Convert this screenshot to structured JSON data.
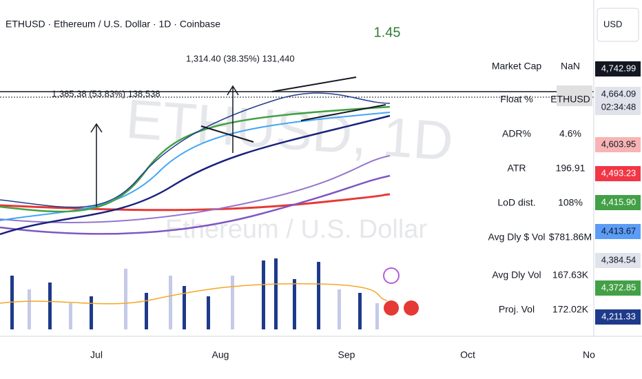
{
  "header": {
    "symbol_title": "ETHUSD · Ethereum / U.S. Dollar · 1D · Coinbase",
    "indicator_value": "1.45"
  },
  "annotations": [
    "1,314.40 (38.35%) 131,440",
    "1,385.38 (53.83%) 138,538"
  ],
  "watermark": {
    "symbol": "ETHUSD, 1D",
    "name": "Ethereum / U.S. Dollar"
  },
  "stats_table": {
    "rows": [
      [
        "Market Cap",
        "NaN"
      ],
      [
        "Float %",
        "ETHUSD"
      ],
      [
        "ADR%",
        "4.6%"
      ],
      [
        "ATR",
        "196.91"
      ],
      [
        "LoD dist.",
        "108%"
      ],
      [
        "Avg Dly $ Vol",
        "$781.86M"
      ],
      [
        "Avg Dly Vol",
        "167.63K"
      ],
      [
        "Proj. Vol",
        "172.02K"
      ]
    ]
  },
  "price_axis": {
    "currency": "USD",
    "labels": [
      "4,742.99",
      "4,664.09",
      "02:34:48",
      "4,603.95",
      "4,493.23",
      "4,415.90",
      "4,413.67",
      "4,384.54",
      "4,372.85",
      "4,211.33"
    ]
  },
  "time_axis": {
    "labels": [
      "Jul",
      "Aug",
      "Sep",
      "Oct",
      "No"
    ]
  }
}
